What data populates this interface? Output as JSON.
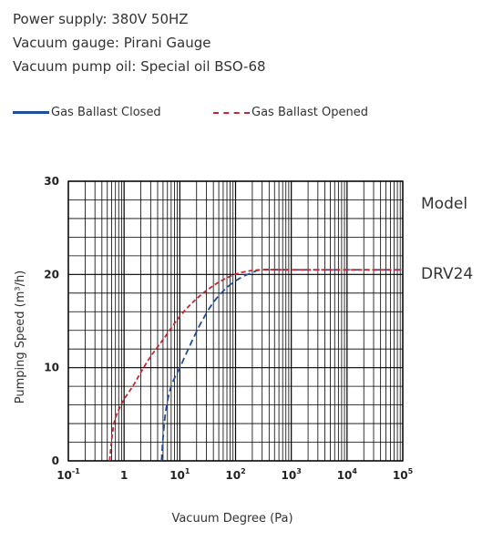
{
  "specs": {
    "power_supply": "Power supply: 380V 50HZ",
    "vacuum_gauge": "Vacuum gauge: Pirani Gauge",
    "pump_oil": "Vacuum pump oil: Special oil BSO-68"
  },
  "colors": {
    "closed": "#1f4e9a",
    "opened": "#c9252c",
    "grid": "#000000",
    "text": "#222222"
  },
  "chart_data": {
    "type": "line",
    "xlabel": "Vacuum Degree (Pa)",
    "ylabel": "Pumping Speed (m³/h)",
    "x_scale": "log",
    "xlim": [
      0.1,
      100000
    ],
    "ylim": [
      0,
      30
    ],
    "grid": true,
    "legend_position": "top",
    "x_ticks": [
      {
        "value": 0.1,
        "base": "10",
        "exp": "-1"
      },
      {
        "value": 1,
        "base": "1",
        "exp": ""
      },
      {
        "value": 10,
        "base": "10",
        "exp": "1"
      },
      {
        "value": 100,
        "base": "10",
        "exp": "2"
      },
      {
        "value": 1000,
        "base": "10",
        "exp": "3"
      },
      {
        "value": 10000,
        "base": "10",
        "exp": "4"
      },
      {
        "value": 100000,
        "base": "10",
        "exp": "5"
      }
    ],
    "y_ticks": [
      0,
      10,
      20,
      30
    ],
    "model_label": "Model",
    "model_name": "DRV24",
    "series": [
      {
        "name": "Gas Ballast Closed",
        "style": "dashed",
        "x": [
          4.7,
          5.0,
          5.5,
          6.2,
          7.0,
          8.5,
          10,
          13,
          17,
          25,
          40,
          70,
          120,
          200,
          300,
          1000,
          100000
        ],
        "y": [
          0,
          2.5,
          5,
          6.8,
          8,
          9.2,
          10,
          11.5,
          13,
          15,
          17,
          18.6,
          19.6,
          20.2,
          20.5,
          20.5,
          20.5
        ]
      },
      {
        "name": "Gas Ballast Opened",
        "style": "dashed",
        "x": [
          0.55,
          0.62,
          0.7,
          0.85,
          1.0,
          1.5,
          2,
          3,
          5,
          10,
          20,
          40,
          80,
          150,
          300,
          1000,
          100000
        ],
        "y": [
          0,
          3,
          4.6,
          5.8,
          6.6,
          8.2,
          9.5,
          11.2,
          13,
          15.5,
          17.4,
          18.8,
          19.8,
          20.3,
          20.5,
          20.5,
          20.5
        ]
      }
    ]
  }
}
